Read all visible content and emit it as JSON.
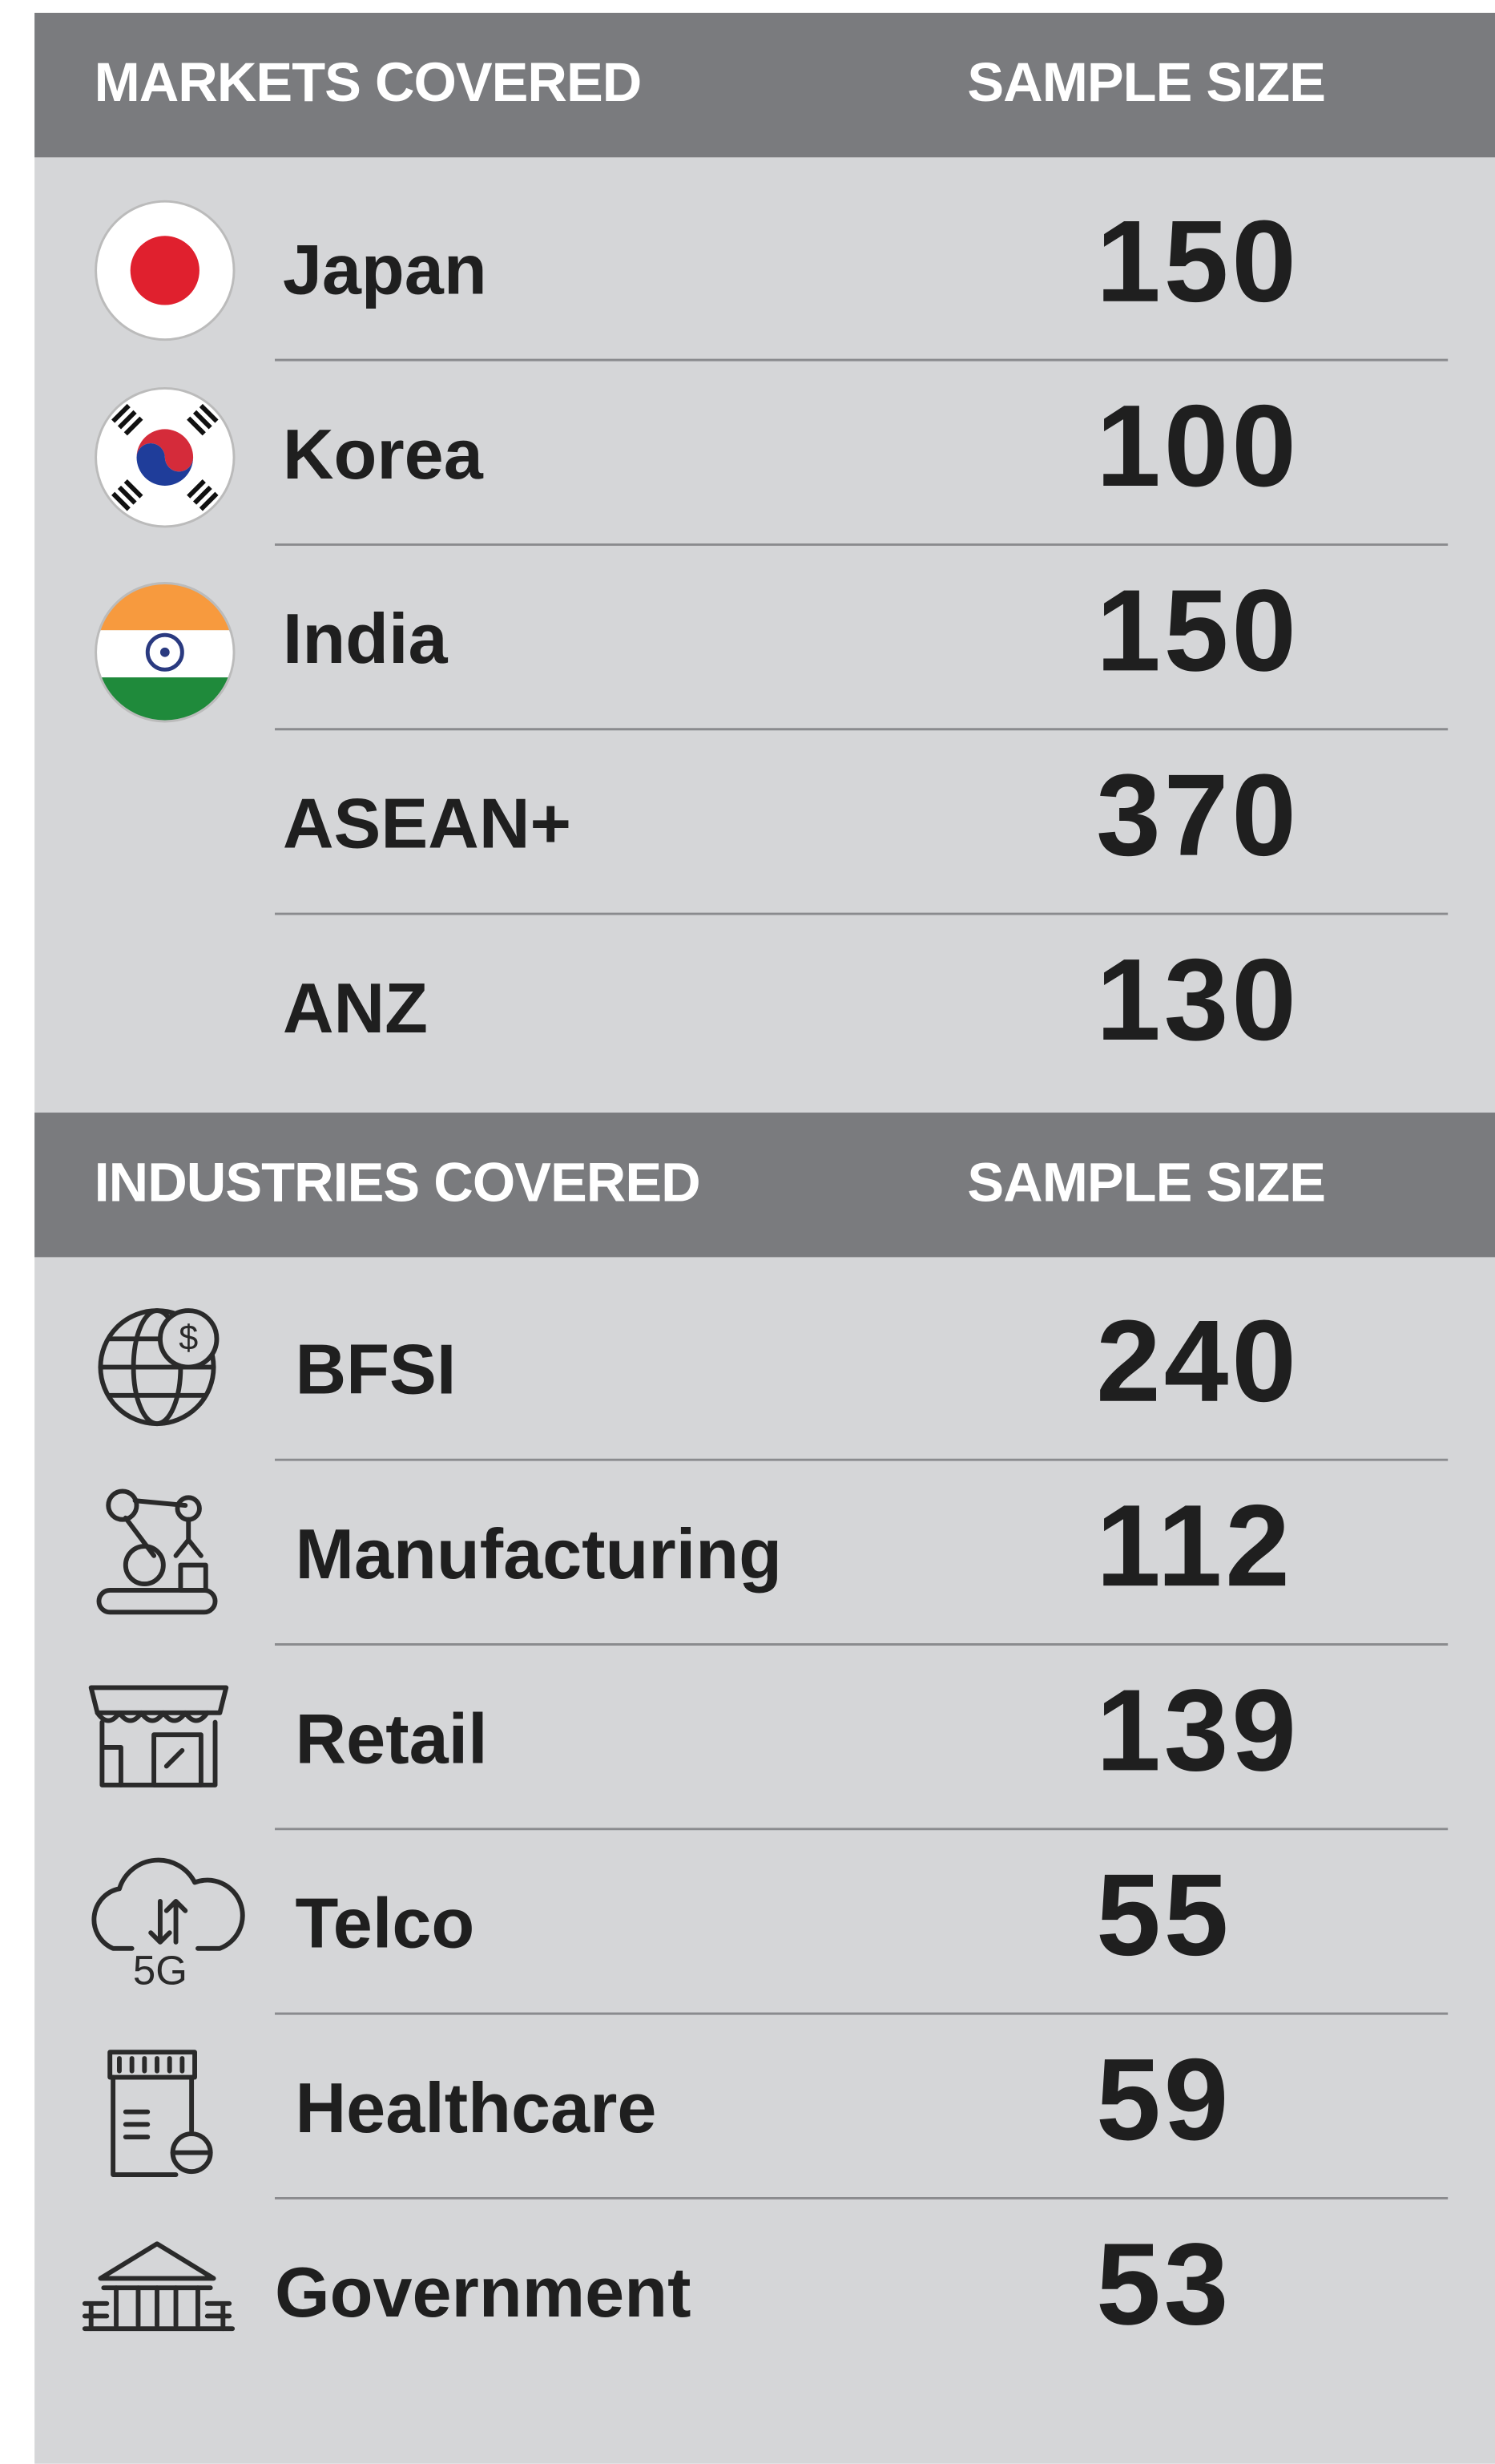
{
  "sections": [
    {
      "header": [
        "MARKETS COVERED",
        "SAMPLE SIZE"
      ],
      "rows": [
        {
          "label": "Japan",
          "value": 150
        },
        {
          "label": "Korea",
          "value": 100
        },
        {
          "label": "India",
          "value": 150
        },
        {
          "label": "ASEAN+",
          "value": 370
        },
        {
          "label": "ANZ",
          "value": 130
        }
      ]
    },
    {
      "header": [
        "INDUSTRIES COVERED",
        "SAMPLE SIZE"
      ],
      "rows": [
        {
          "label": "BFSI",
          "value": 240
        },
        {
          "label": "Manufacturing",
          "value": 112
        },
        {
          "label": "Retail",
          "value": 139
        },
        {
          "label": "Telco",
          "value": 55
        },
        {
          "label": "Healthcare",
          "value": 59
        },
        {
          "label": "Government",
          "value": 53
        }
      ]
    }
  ]
}
